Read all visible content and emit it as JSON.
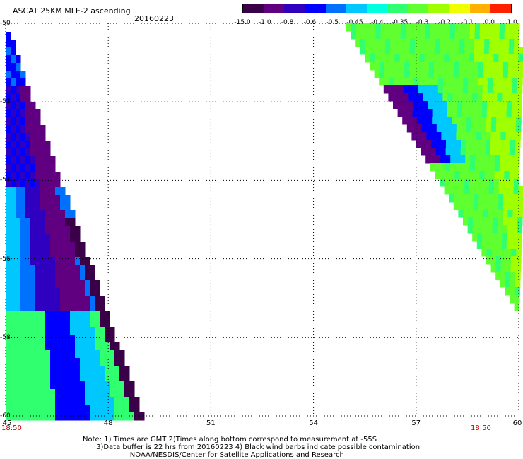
{
  "header": {
    "title": "ASCAT 25KM MLE-2 ascending",
    "date": "20160223"
  },
  "colorbar": {
    "labels": [
      "-15.0",
      "-1.0",
      "-0.8",
      "-0.6",
      "-0.5",
      "-0.45",
      "-0.4",
      "-0.35",
      "-0.3",
      "-0.2",
      "-0.1",
      "0.0",
      "1.0"
    ],
    "colors": [
      "#3a0048",
      "#600080",
      "#3000c0",
      "#0000ff",
      "#0070ff",
      "#00c8ff",
      "#00ffe0",
      "#30ff70",
      "#60ff30",
      "#a0ff00",
      "#f0ff00",
      "#ffb000",
      "#ff2000"
    ]
  },
  "axes": {
    "lat_labels": [
      "-50",
      "-52",
      "-54",
      "-56",
      "-58",
      "-60"
    ],
    "lon_labels": [
      "45",
      "48",
      "51",
      "54",
      "57",
      "60"
    ]
  },
  "times": {
    "left": "18:50",
    "right": "18:50"
  },
  "note": {
    "line1": "Note: 1) Times are GMT 2)Times along bottom correspond to measurement at -55S",
    "line2": "3)Data buffer is 22 hrs from 20160223 4) Black wind barbs indicate possible contamination",
    "line3": "NOAA/NESDIS/Center for Satellite Applications and Research"
  }
}
